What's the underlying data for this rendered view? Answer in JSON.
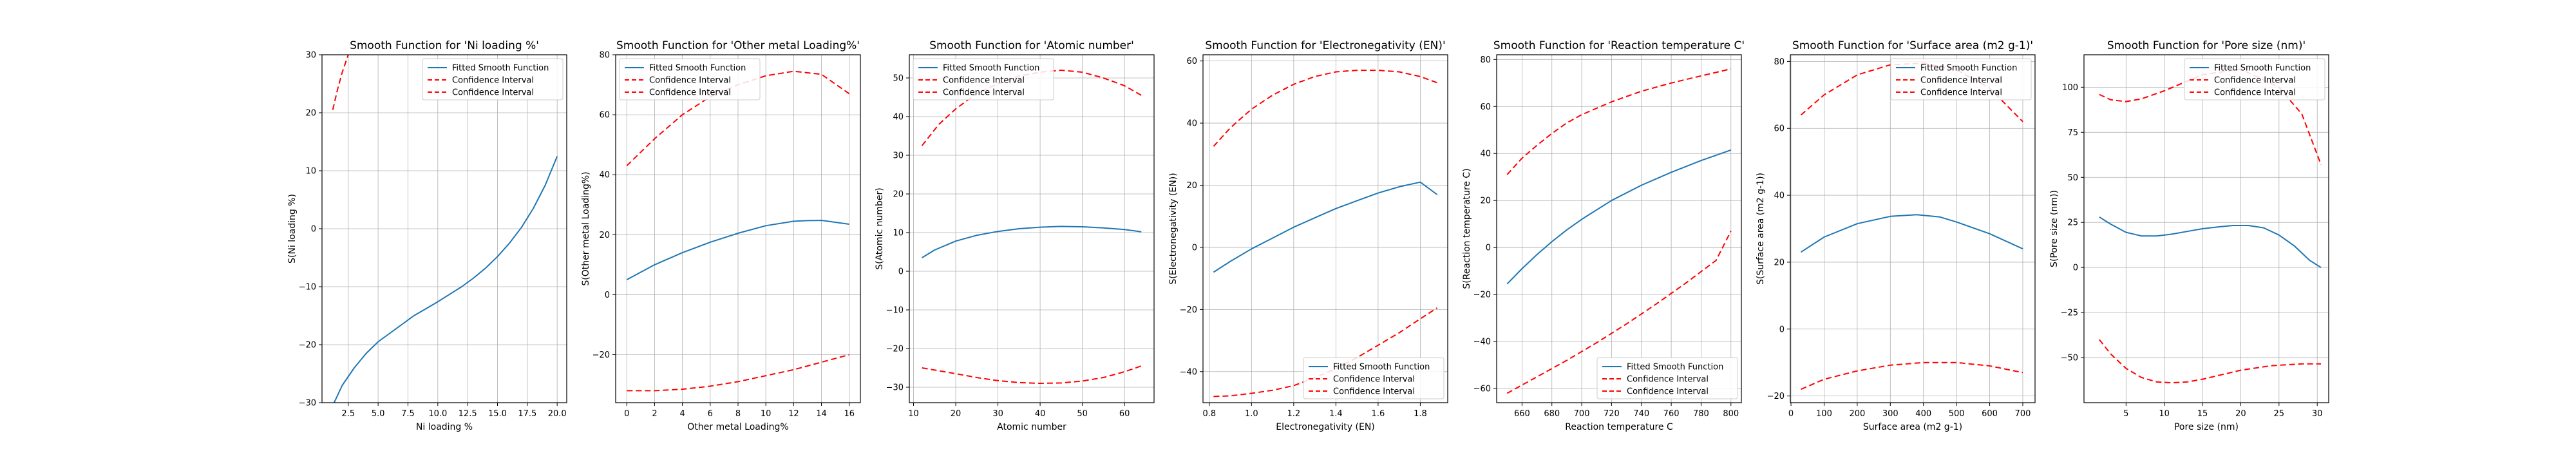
{
  "figure": {
    "legend_labels": [
      "Fitted Smooth Function",
      "Confidence Interval",
      "Confidence Interval"
    ],
    "colors": {
      "fit": "#1f77b4",
      "ci": "#ff0000",
      "grid": "#b0b0b0"
    }
  },
  "chart_data": [
    {
      "type": "line",
      "title": "Smooth Function for 'Ni loading %'",
      "xlabel": "Ni loading %",
      "ylabel": "S(Ni loading %)",
      "xlim": [
        0.3,
        20.8
      ],
      "ylim": [
        -30,
        30
      ],
      "xticks": [
        2.5,
        5.0,
        7.5,
        10.0,
        12.5,
        15.0,
        17.5,
        20.0
      ],
      "xtick_labels": [
        "2.5",
        "5.0",
        "7.5",
        "10.0",
        "12.5",
        "15.0",
        "17.5",
        "20.0"
      ],
      "yticks": [
        -30,
        -20,
        -10,
        0,
        10,
        20,
        30
      ],
      "ytick_labels": [
        "−30",
        "−20",
        "−10",
        "0",
        "10",
        "20",
        "30"
      ],
      "legend": "upper right",
      "grid": true,
      "series": [
        {
          "name": "Fitted Smooth Function",
          "style": "fit",
          "x": [
            1.2,
            2,
            3,
            4,
            5,
            6,
            7,
            8,
            9,
            10,
            11,
            12,
            13,
            14,
            15,
            16,
            17,
            18,
            19,
            20
          ],
          "y": [
            -30.5,
            -27,
            -24,
            -21.5,
            -19.5,
            -18,
            -16.5,
            -15,
            -13.8,
            -12.6,
            -11.3,
            -10,
            -8.5,
            -6.8,
            -4.8,
            -2.5,
            0.2,
            3.5,
            7.5,
            12.5
          ]
        },
        {
          "name": "Confidence Interval",
          "style": "ci",
          "x": [
            1.2,
            1.6,
            2.0,
            2.5,
            3.0
          ],
          "y": [
            20.5,
            24,
            27,
            30,
            33
          ]
        }
      ]
    },
    {
      "type": "line",
      "title": "Smooth Function for 'Other metal Loading%'",
      "xlabel": "Other metal Loading%",
      "ylabel": "S(Other metal Loading%)",
      "xlim": [
        -0.8,
        16.8
      ],
      "ylim": [
        -36,
        80
      ],
      "xticks": [
        0,
        2,
        4,
        6,
        8,
        10,
        12,
        14,
        16
      ],
      "xtick_labels": [
        "0",
        "2",
        "4",
        "6",
        "8",
        "10",
        "12",
        "14",
        "16"
      ],
      "yticks": [
        -20,
        0,
        20,
        40,
        60,
        80
      ],
      "ytick_labels": [
        "−20",
        "0",
        "20",
        "40",
        "60",
        "80"
      ],
      "legend": "upper left",
      "grid": true,
      "series": [
        {
          "name": "Fitted Smooth Function",
          "style": "fit",
          "x": [
            0,
            2,
            4,
            6,
            8,
            10,
            12,
            13,
            14,
            16
          ],
          "y": [
            5,
            10,
            14,
            17.5,
            20.5,
            23,
            24.5,
            24.7,
            24.8,
            23.5
          ]
        },
        {
          "name": "Confidence Interval",
          "style": "ci",
          "x": [
            0,
            2,
            4,
            6,
            8,
            10,
            12,
            14,
            16
          ],
          "y": [
            43,
            52,
            60,
            66,
            70,
            73,
            74.5,
            73.5,
            67
          ]
        },
        {
          "name": "Confidence Interval",
          "style": "ci",
          "x": [
            0,
            2,
            4,
            6,
            8,
            10,
            12,
            14,
            16
          ],
          "y": [
            -32,
            -32,
            -31.5,
            -30.5,
            -29,
            -27,
            -25,
            -22.5,
            -20
          ]
        }
      ]
    },
    {
      "type": "line",
      "title": "Smooth Function for 'Atomic number'",
      "xlabel": "Atomic number",
      "ylabel": "S(Atomic number)",
      "xlim": [
        9,
        67
      ],
      "ylim": [
        -34,
        56
      ],
      "xticks": [
        10,
        20,
        30,
        40,
        50,
        60
      ],
      "xtick_labels": [
        "10",
        "20",
        "30",
        "40",
        "50",
        "60"
      ],
      "yticks": [
        -30,
        -20,
        -10,
        0,
        10,
        20,
        30,
        40,
        50
      ],
      "ytick_labels": [
        "−30",
        "−20",
        "−10",
        "0",
        "10",
        "20",
        "30",
        "40",
        "50"
      ],
      "legend": "upper left",
      "grid": true,
      "series": [
        {
          "name": "Fitted Smooth Function",
          "style": "fit",
          "x": [
            12,
            15,
            20,
            25,
            30,
            35,
            40,
            45,
            50,
            55,
            60,
            64
          ],
          "y": [
            3.5,
            5.5,
            7.8,
            9.3,
            10.3,
            11,
            11.4,
            11.6,
            11.5,
            11.2,
            10.8,
            10.2
          ]
        },
        {
          "name": "Confidence Interval",
          "style": "ci",
          "x": [
            12,
            16,
            20,
            25,
            30,
            35,
            40,
            45,
            50,
            55,
            60,
            64
          ],
          "y": [
            32.5,
            38,
            42,
            46,
            48.5,
            50.5,
            51.5,
            52,
            51.5,
            50,
            48,
            45.5
          ]
        },
        {
          "name": "Confidence Interval",
          "style": "ci",
          "x": [
            12,
            20,
            25,
            30,
            35,
            40,
            45,
            50,
            55,
            60,
            64
          ],
          "y": [
            -25,
            -26.5,
            -27.5,
            -28.3,
            -28.8,
            -29,
            -28.9,
            -28.4,
            -27.5,
            -26,
            -24.5
          ]
        }
      ]
    },
    {
      "type": "line",
      "title": "Smooth Function for 'Electronegativity (EN)'",
      "xlabel": "Electronegativity (EN)",
      "ylabel": "S(Electronegativity (EN))",
      "xlim": [
        0.77,
        1.93
      ],
      "ylim": [
        -50,
        62
      ],
      "xticks": [
        0.8,
        1.0,
        1.2,
        1.4,
        1.6,
        1.8
      ],
      "xtick_labels": [
        "0.8",
        "1.0",
        "1.2",
        "1.4",
        "1.6",
        "1.8"
      ],
      "yticks": [
        -40,
        -20,
        0,
        20,
        40,
        60
      ],
      "ytick_labels": [
        "−40",
        "−20",
        "0",
        "20",
        "40",
        "60"
      ],
      "legend": "lower right",
      "grid": true,
      "series": [
        {
          "name": "Fitted Smooth Function",
          "style": "fit",
          "x": [
            0.82,
            0.9,
            1.0,
            1.1,
            1.2,
            1.3,
            1.4,
            1.5,
            1.6,
            1.7,
            1.8,
            1.88
          ],
          "y": [
            -8,
            -4.5,
            -0.5,
            3,
            6.5,
            9.5,
            12.5,
            15,
            17.5,
            19.5,
            21,
            17
          ]
        },
        {
          "name": "Confidence Interval",
          "style": "ci",
          "x": [
            0.82,
            0.9,
            1.0,
            1.1,
            1.2,
            1.3,
            1.4,
            1.5,
            1.6,
            1.7,
            1.8,
            1.88
          ],
          "y": [
            32.5,
            38.5,
            44.5,
            49,
            52.5,
            55,
            56.5,
            57,
            57,
            56.5,
            55,
            53
          ]
        },
        {
          "name": "Confidence Interval",
          "style": "ci",
          "x": [
            0.82,
            0.9,
            1.0,
            1.1,
            1.2,
            1.3,
            1.4,
            1.5,
            1.6,
            1.7,
            1.8,
            1.88
          ],
          "y": [
            -48,
            -47.8,
            -47,
            -46,
            -44.5,
            -42,
            -39,
            -35.5,
            -31.5,
            -27.5,
            -23,
            -19.5
          ]
        }
      ]
    },
    {
      "type": "line",
      "title": "Smooth Function for 'Reaction temperature C'",
      "xlabel": "Reaction temperature C",
      "ylabel": "S(Reaction temperature C)",
      "xlim": [
        643,
        807
      ],
      "ylim": [
        -66,
        82
      ],
      "xticks": [
        660,
        680,
        700,
        720,
        740,
        760,
        780,
        800
      ],
      "xtick_labels": [
        "660",
        "680",
        "700",
        "720",
        "740",
        "760",
        "780",
        "800"
      ],
      "yticks": [
        -60,
        -40,
        -20,
        0,
        20,
        40,
        60,
        80
      ],
      "ytick_labels": [
        "−60",
        "−40",
        "−20",
        "0",
        "20",
        "40",
        "60",
        "80"
      ],
      "legend": "lower right",
      "grid": true,
      "series": [
        {
          "name": "Fitted Smooth Function",
          "style": "fit",
          "x": [
            650,
            660,
            670,
            680,
            690,
            700,
            720,
            740,
            760,
            780,
            800
          ],
          "y": [
            -15.5,
            -9,
            -3,
            2.5,
            7.5,
            12,
            20,
            26.5,
            32,
            37,
            41.5
          ]
        },
        {
          "name": "Confidence Interval",
          "style": "ci",
          "x": [
            650,
            660,
            670,
            680,
            690,
            700,
            720,
            740,
            760,
            780,
            800
          ],
          "y": [
            31,
            38,
            43.5,
            48.5,
            53,
            56.5,
            62,
            66.5,
            70,
            73,
            76
          ]
        },
        {
          "name": "Confidence Interval",
          "style": "ci",
          "x": [
            650,
            670,
            690,
            710,
            730,
            750,
            770,
            790,
            800
          ],
          "y": [
            -62,
            -55,
            -48,
            -40.5,
            -32.5,
            -24,
            -15,
            -5.5,
            7
          ]
        }
      ]
    },
    {
      "type": "line",
      "title": "Smooth Function for 'Surface area (m2 g-1)'",
      "xlabel": "Surface area (m2 g-1)",
      "ylabel": "S(Surface area (m2 g-1))",
      "xlim": [
        -2,
        737
      ],
      "ylim": [
        -22,
        82
      ],
      "xticks": [
        0,
        100,
        200,
        300,
        400,
        500,
        600,
        700
      ],
      "xtick_labels": [
        "0",
        "100",
        "200",
        "300",
        "400",
        "500",
        "600",
        "700"
      ],
      "yticks": [
        -20,
        0,
        20,
        40,
        60,
        80
      ],
      "ytick_labels": [
        "−20",
        "0",
        "20",
        "40",
        "60",
        "80"
      ],
      "legend": "upper right",
      "grid": true,
      "series": [
        {
          "name": "Fitted Smooth Function",
          "style": "fit",
          "x": [
            30,
            100,
            200,
            300,
            380,
            450,
            500,
            600,
            700
          ],
          "y": [
            23,
            27.5,
            31.5,
            33.7,
            34.2,
            33.5,
            32,
            28.5,
            24
          ]
        },
        {
          "name": "Confidence Interval",
          "style": "ci",
          "x": [
            30,
            100,
            200,
            300,
            400,
            500,
            600,
            700
          ],
          "y": [
            64,
            70,
            76,
            79,
            79.5,
            77.5,
            72,
            62
          ]
        },
        {
          "name": "Confidence Interval",
          "style": "ci",
          "x": [
            30,
            100,
            200,
            300,
            400,
            500,
            600,
            700
          ],
          "y": [
            -18,
            -15,
            -12.5,
            -10.8,
            -10,
            -10,
            -11,
            -13
          ]
        }
      ]
    },
    {
      "type": "line",
      "title": "Smooth Function for 'Pore size (nm)'",
      "xlabel": "Pore size (nm)",
      "ylabel": "S(Pore size (nm))",
      "xlim": [
        -0.5,
        31.5
      ],
      "ylim": [
        -75,
        118
      ],
      "xticks": [
        5,
        10,
        15,
        20,
        25,
        30
      ],
      "xtick_labels": [
        "5",
        "10",
        "15",
        "20",
        "25",
        "30"
      ],
      "yticks": [
        -50,
        -25,
        0,
        25,
        50,
        75,
        100
      ],
      "ytick_labels": [
        "−50",
        "−25",
        "0",
        "25",
        "50",
        "75",
        "100"
      ],
      "legend": "upper right",
      "grid": true,
      "series": [
        {
          "name": "Fitted Smooth Function",
          "style": "fit",
          "x": [
            1.5,
            3,
            5,
            7,
            9,
            11,
            13,
            15,
            17,
            19,
            21,
            23,
            25,
            27,
            29,
            30.5
          ],
          "y": [
            28,
            24,
            19.5,
            17.5,
            17.5,
            18.5,
            20,
            21.5,
            22.5,
            23.3,
            23.3,
            22,
            18,
            12,
            4,
            0
          ]
        },
        {
          "name": "Confidence Interval",
          "style": "ci",
          "x": [
            1.5,
            3,
            5,
            7,
            10,
            15,
            20,
            25,
            28,
            30.5
          ],
          "y": [
            96,
            93,
            92,
            93.5,
            98,
            107,
            110,
            100,
            85,
            57
          ]
        },
        {
          "name": "Confidence Interval",
          "style": "ci",
          "x": [
            1.5,
            3,
            5,
            7,
            9,
            11,
            13,
            15,
            17,
            20,
            24,
            28,
            30.5
          ],
          "y": [
            -40,
            -48,
            -56,
            -61,
            -63.5,
            -64,
            -63.5,
            -62,
            -60,
            -57,
            -54.5,
            -53.5,
            -53.5
          ]
        }
      ]
    }
  ]
}
